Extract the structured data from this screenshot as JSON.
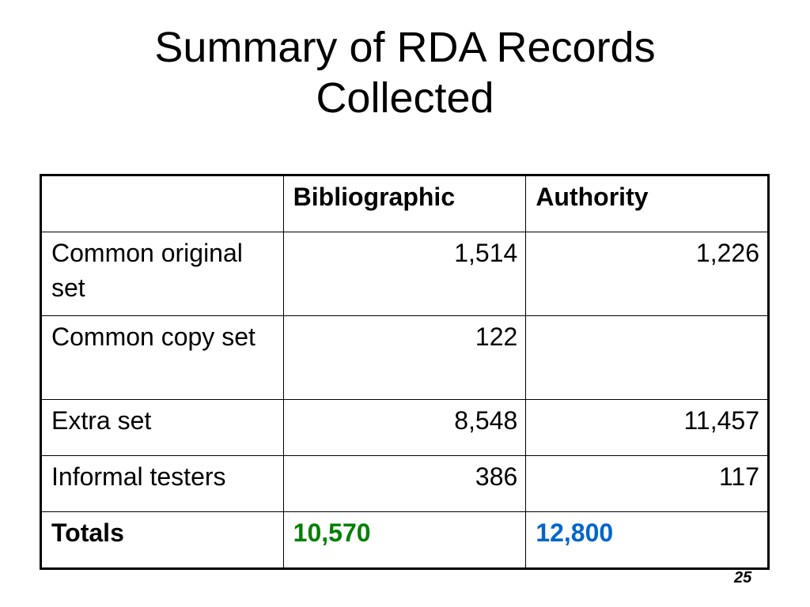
{
  "slide": {
    "title_line1": "Summary of RDA Records",
    "title_line2": "Collected",
    "page_number": "25"
  },
  "table": {
    "headers": [
      "",
      "Bibliographic",
      "Authority"
    ],
    "rows": [
      {
        "label": "Common original set",
        "bibliographic": "1,514",
        "authority": "1,226"
      },
      {
        "label": "Common copy set",
        "bibliographic": "122",
        "authority": ""
      },
      {
        "label": "Extra set",
        "bibliographic": "8,548",
        "authority": "11,457"
      },
      {
        "label": "Informal testers",
        "bibliographic": "386",
        "authority": "117"
      }
    ],
    "totals": {
      "label": "Totals",
      "bibliographic": "10,570",
      "authority": "12,800",
      "bibliographic_color": "#008000",
      "authority_color": "#0066cc"
    }
  }
}
